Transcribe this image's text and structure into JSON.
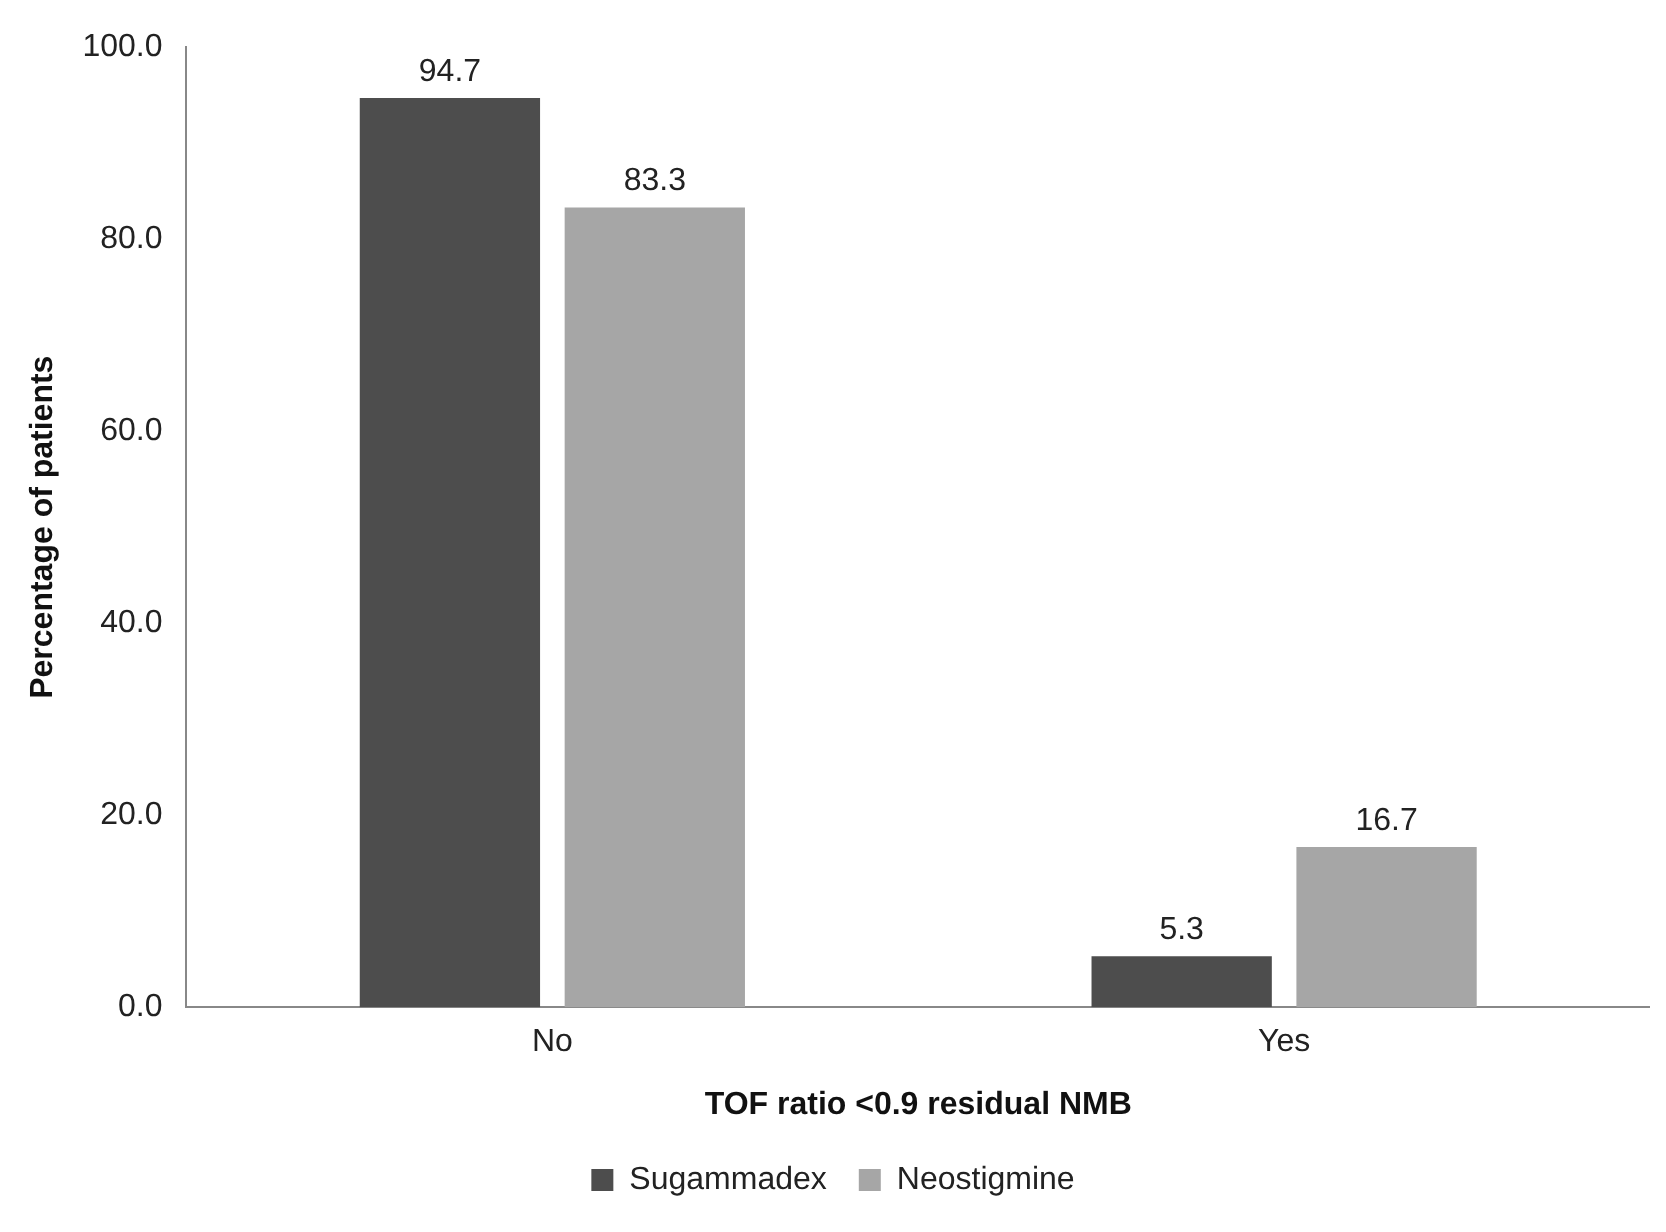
{
  "chart_data": {
    "type": "bar",
    "xlabel": "TOF ratio <0.9 residual NMB",
    "ylabel": "Percentage of patients",
    "categories": [
      "No",
      "Yes"
    ],
    "series": [
      {
        "name": "Sugammadex",
        "color": "#4d4d4d",
        "values": [
          94.7,
          5.3
        ]
      },
      {
        "name": "Neostigmine",
        "color": "#a6a6a6",
        "values": [
          83.3,
          16.7
        ]
      }
    ],
    "ylim": [
      0,
      100
    ],
    "yticks": [
      {
        "value": 0,
        "label": "0.0"
      },
      {
        "value": 20,
        "label": "20.0"
      },
      {
        "value": 40,
        "label": "40.0"
      },
      {
        "value": 60,
        "label": "60.0"
      },
      {
        "value": 80,
        "label": "80.0"
      },
      {
        "value": 100,
        "label": "100.0"
      }
    ],
    "grid": false,
    "legend": "bottom",
    "data_labels": true
  }
}
